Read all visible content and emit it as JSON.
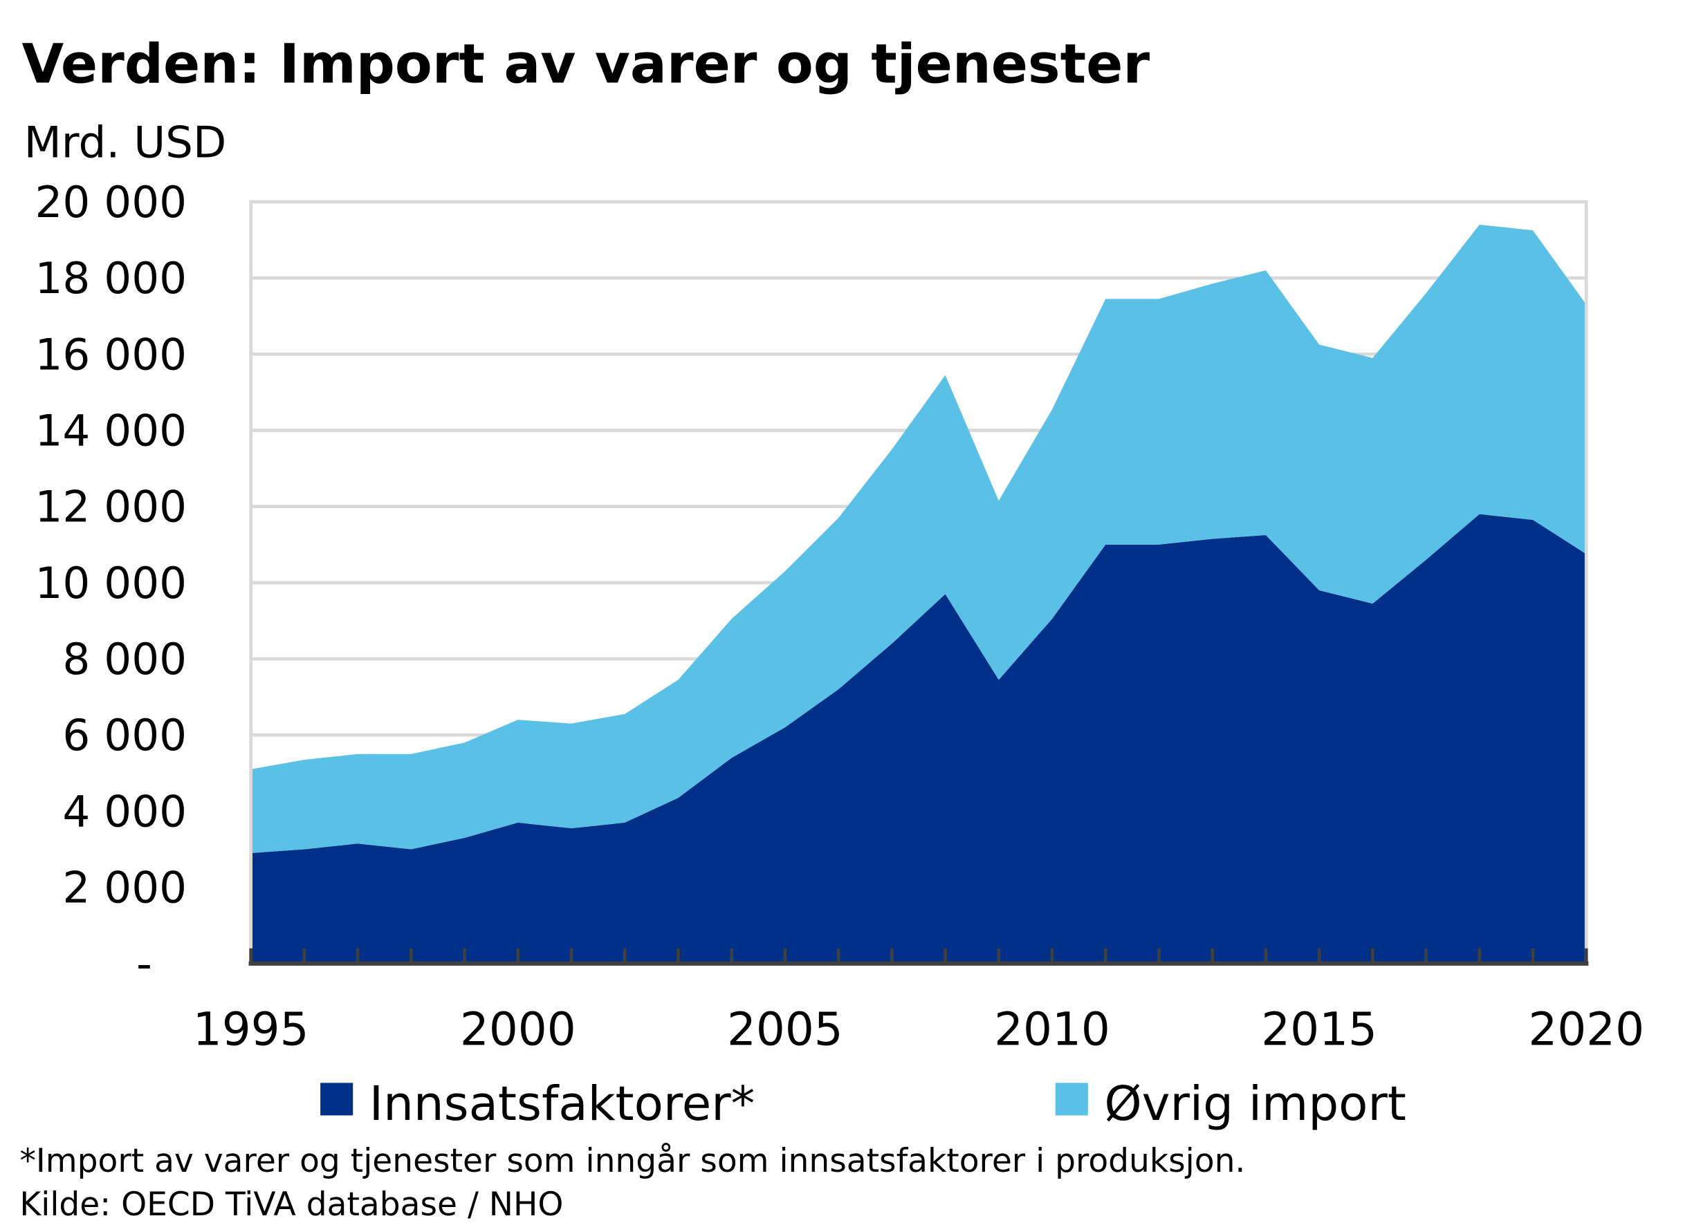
{
  "chart_data": {
    "type": "area",
    "stacked": true,
    "title": "Verden: Import av varer og tjenester",
    "ylabel": "Mrd. USD",
    "xlabel": "",
    "ylim": [
      0,
      20000
    ],
    "xlim": [
      1995,
      2020
    ],
    "grid": true,
    "y_ticks": [
      0,
      2000,
      4000,
      6000,
      8000,
      10000,
      12000,
      14000,
      16000,
      18000,
      20000
    ],
    "y_tick_labels": [
      "-",
      "2 000",
      "4 000",
      "6 000",
      "8 000",
      "10 000",
      "12 000",
      "14 000",
      "16 000",
      "18 000",
      "20 000"
    ],
    "x_tick_labels": [
      "1995",
      "2000",
      "2005",
      "2010",
      "2015",
      "2020"
    ],
    "x": [
      1995,
      1996,
      1997,
      1998,
      1999,
      2000,
      2001,
      2002,
      2003,
      2004,
      2005,
      2006,
      2007,
      2008,
      2009,
      2010,
      2011,
      2012,
      2013,
      2014,
      2015,
      2016,
      2017,
      2018,
      2019,
      2020
    ],
    "series": [
      {
        "name": "Innsatsfaktorer*",
        "color": "#003087",
        "values": [
          2900,
          3000,
          3150,
          3000,
          3300,
          3700,
          3550,
          3700,
          4350,
          5400,
          6200,
          7200,
          8400,
          9700,
          7450,
          9050,
          11000,
          11000,
          11150,
          11250,
          9800,
          9450,
          10600,
          11800,
          11650,
          10750
        ]
      },
      {
        "name": "Øvrig import",
        "color": "#5BC0E6",
        "values": [
          2200,
          2350,
          2350,
          2500,
          2500,
          2700,
          2750,
          2850,
          3100,
          3650,
          4100,
          4500,
          5100,
          5750,
          4700,
          5500,
          6450,
          6450,
          6700,
          6950,
          6450,
          6450,
          7000,
          7600,
          7600,
          6550
        ]
      }
    ],
    "legend_position": "bottom",
    "footnote": "*Import av varer og tjenester som inngår som innsatsfaktorer i produksjon.",
    "source": "Kilde: OECD TiVA database / NHO"
  }
}
